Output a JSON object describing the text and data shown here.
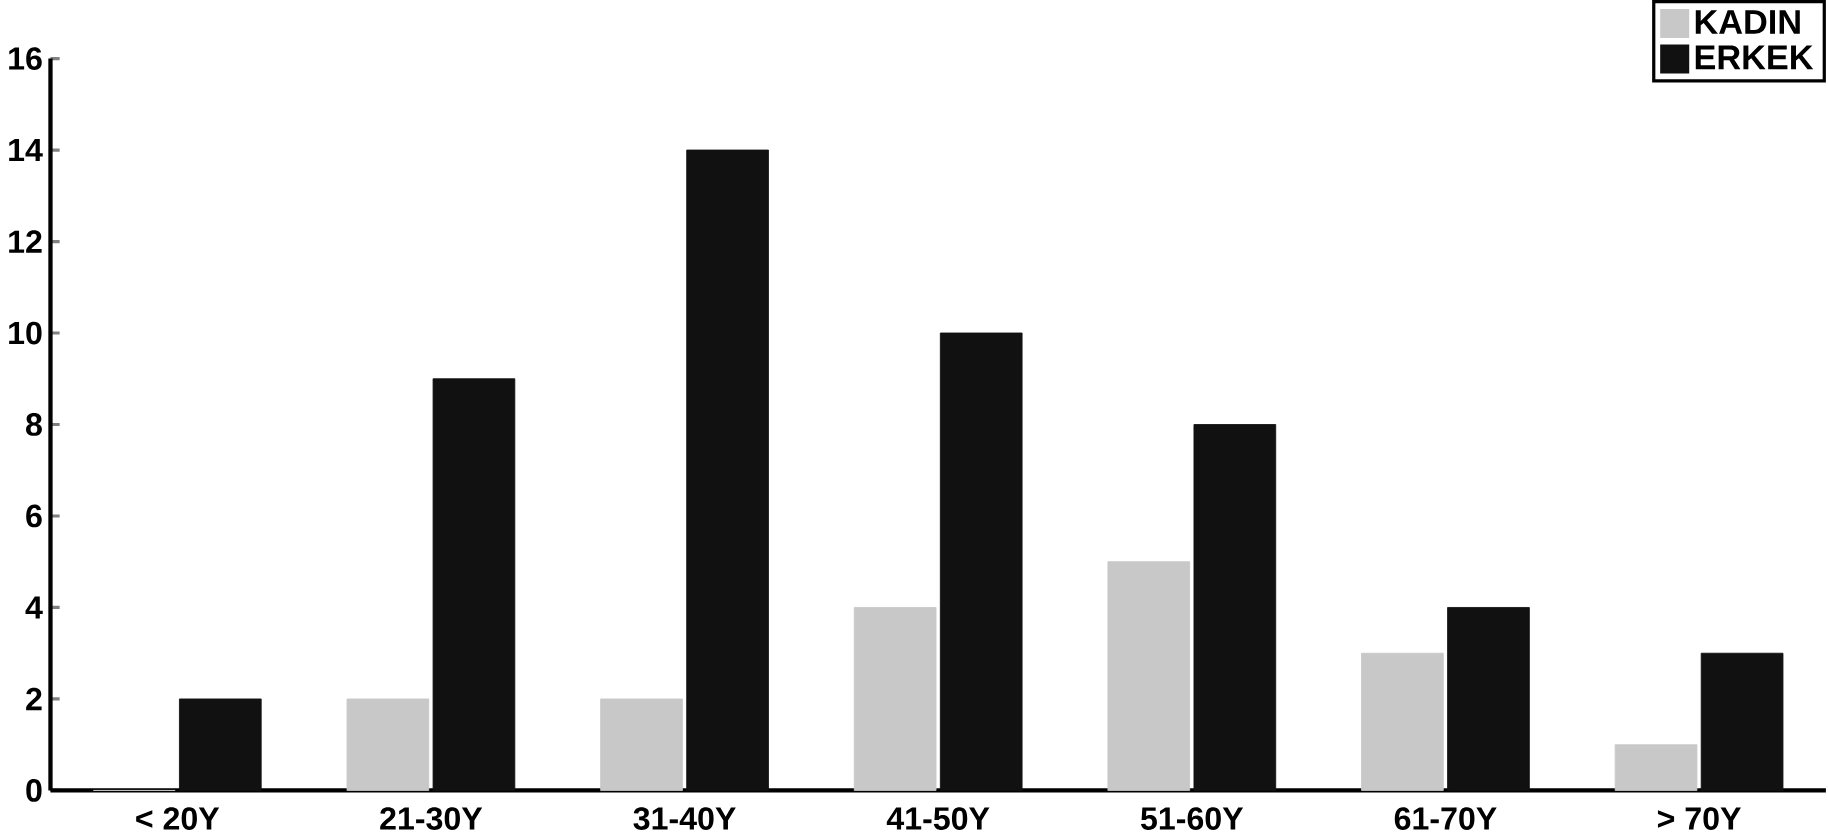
{
  "chart_data": {
    "type": "bar",
    "categories": [
      "< 20Y",
      "21-30Y",
      "31-40Y",
      "41-50Y",
      "51-60Y",
      "61-70Y",
      "> 70Y"
    ],
    "series": [
      {
        "name": "KADIN",
        "color": "#c8c8c8",
        "values": [
          0,
          2,
          2,
          4,
          5,
          3,
          1
        ]
      },
      {
        "name": "ERKEK",
        "color": "#111111",
        "values": [
          2,
          9,
          14,
          10,
          8,
          4,
          3
        ]
      }
    ],
    "ylim": [
      0,
      16
    ],
    "yticks": [
      0,
      2,
      4,
      6,
      8,
      10,
      12,
      14,
      16
    ],
    "legend": "top right"
  }
}
